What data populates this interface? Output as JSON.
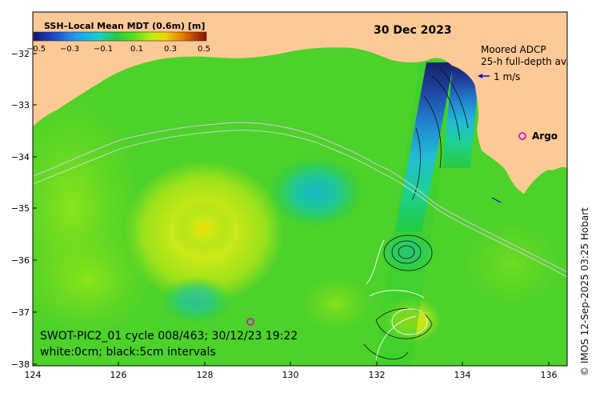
{
  "title_date": "30 Dec 2023",
  "colorbar": {
    "title": "SSH–Local Mean MDT (0.6m) [m]",
    "ticks": [
      "−0.5",
      "−0.3",
      "−0.1",
      "0.1",
      "0.3",
      "0.5"
    ],
    "colors": [
      "#1a1a7a",
      "#1f3fc8",
      "#1e8ff0",
      "#18d3e0",
      "#22d05a",
      "#19c819",
      "#7ce81a",
      "#e8f000",
      "#f0c000",
      "#e06a00",
      "#b02000",
      "#6a0a00"
    ]
  },
  "legend": {
    "adcp_line1": "Moored ADCP",
    "adcp_line2": "25-h full-depth av.",
    "scale_label": "1 m/s",
    "argo_label": "Argo",
    "argo_marker": "o"
  },
  "annotation": {
    "line1": "SWOT-PIC2_01 cycle 008/463; 30/12/23 19:22",
    "line2": "white:0cm; black:5cm intervals"
  },
  "axes": {
    "lon_ticks": [
      "124",
      "126",
      "128",
      "130",
      "132",
      "134",
      "136"
    ],
    "lat_ticks": [
      "−32",
      "−33",
      "−34",
      "−35",
      "−36",
      "−37",
      "−38"
    ]
  },
  "credit": "© IMOS 12-Sep-2025 03:25 Hobart",
  "colors": {
    "land": "#fdc996",
    "ocean_base": "#4cd22a"
  }
}
